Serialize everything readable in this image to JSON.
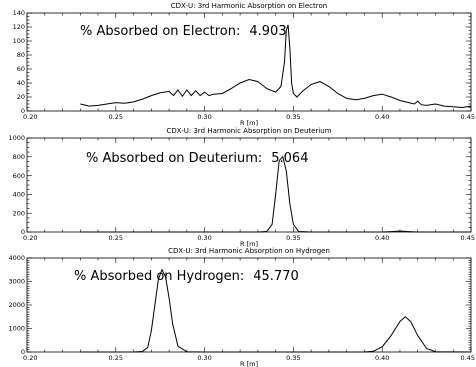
{
  "chart_data": [
    {
      "type": "line",
      "title": "CDX-U: 3rd Harmonic Absorption on Electron",
      "xlabel": "R [m]",
      "ylabel": "",
      "xlim": [
        0.2,
        0.45
      ],
      "ylim": [
        0,
        140
      ],
      "xticks": [
        "0.20",
        "0.25",
        "0.30",
        "0.35",
        "0.40",
        "0.45"
      ],
      "yticks": [
        "0",
        "20",
        "40",
        "60",
        "80",
        "100",
        "120",
        "140"
      ],
      "annotation": {
        "label": "% Absorbed on Electron:",
        "value": "4.903"
      },
      "series": [
        {
          "x": [
            0.23,
            0.235,
            0.24,
            0.245,
            0.25,
            0.255,
            0.26,
            0.265,
            0.27,
            0.275,
            0.28,
            0.2825,
            0.285,
            0.2875,
            0.29,
            0.2925,
            0.295,
            0.2975,
            0.3,
            0.3025,
            0.305,
            0.31,
            0.315,
            0.32,
            0.325,
            0.33,
            0.335,
            0.34,
            0.343,
            0.345,
            0.346,
            0.347,
            0.348,
            0.349,
            0.35,
            0.352,
            0.355,
            0.36,
            0.365,
            0.37,
            0.375,
            0.38,
            0.385,
            0.39,
            0.395,
            0.4,
            0.405,
            0.41,
            0.415,
            0.418,
            0.42,
            0.422,
            0.425,
            0.43,
            0.435,
            0.44,
            0.445,
            0.45
          ],
          "y": [
            10,
            7,
            8,
            10,
            12,
            11,
            13,
            17,
            22,
            26,
            28,
            22,
            30,
            21,
            30,
            22,
            29,
            22,
            27,
            22,
            24,
            25,
            32,
            40,
            45,
            42,
            32,
            27,
            35,
            70,
            115,
            123,
            90,
            40,
            25,
            20,
            28,
            38,
            42,
            35,
            25,
            18,
            16,
            18,
            22,
            24,
            20,
            15,
            12,
            10,
            14,
            9,
            8,
            10,
            7,
            6,
            5,
            7
          ]
        }
      ]
    },
    {
      "type": "line",
      "title": "CDX-U: 3rd Harmonic Absorption on Deuterium",
      "xlabel": "R [m]",
      "ylabel": "",
      "xlim": [
        0.2,
        0.45
      ],
      "ylim": [
        0,
        1000
      ],
      "xticks": [
        "0.20",
        "0.25",
        "0.30",
        "0.35",
        "0.40",
        "0.45"
      ],
      "yticks": [
        "0",
        "200",
        "400",
        "600",
        "800",
        "1000"
      ],
      "annotation": {
        "label": "% Absorbed on Deuterium:",
        "value": "5.064"
      },
      "series": [
        {
          "x": [
            0.23,
            0.3,
            0.33,
            0.335,
            0.338,
            0.34,
            0.342,
            0.344,
            0.346,
            0.348,
            0.35,
            0.353,
            0.36,
            0.4,
            0.405,
            0.41,
            0.415,
            0.42,
            0.45
          ],
          "y": [
            0,
            0,
            0,
            5,
            80,
            400,
            760,
            800,
            650,
            300,
            80,
            5,
            0,
            0,
            4,
            10,
            4,
            0,
            0
          ]
        }
      ]
    },
    {
      "type": "line",
      "title": "CDX-U: 3rd Harmonic Absorption on Hydrogen",
      "xlabel": "R [m]",
      "ylabel": "",
      "xlim": [
        0.2,
        0.45
      ],
      "ylim": [
        0,
        4000
      ],
      "xticks": [
        "0.20",
        "0.25",
        "0.30",
        "0.35",
        "0.40",
        "0.45"
      ],
      "yticks": [
        "0",
        "1000",
        "2000",
        "3000",
        "4000"
      ],
      "annotation": {
        "label": "% Absorbed on Hydrogen:",
        "value": "45.770"
      },
      "series": [
        {
          "x": [
            0.23,
            0.26,
            0.265,
            0.268,
            0.27,
            0.272,
            0.274,
            0.276,
            0.278,
            0.28,
            0.282,
            0.285,
            0.29,
            0.3,
            0.39,
            0.395,
            0.4,
            0.405,
            0.41,
            0.413,
            0.416,
            0.42,
            0.425,
            0.43,
            0.45
          ],
          "y": [
            0,
            0,
            20,
            200,
            900,
            2000,
            3100,
            3500,
            3200,
            2300,
            1200,
            250,
            10,
            0,
            0,
            30,
            220,
            700,
            1300,
            1500,
            1300,
            700,
            150,
            10,
            0
          ]
        }
      ]
    }
  ]
}
